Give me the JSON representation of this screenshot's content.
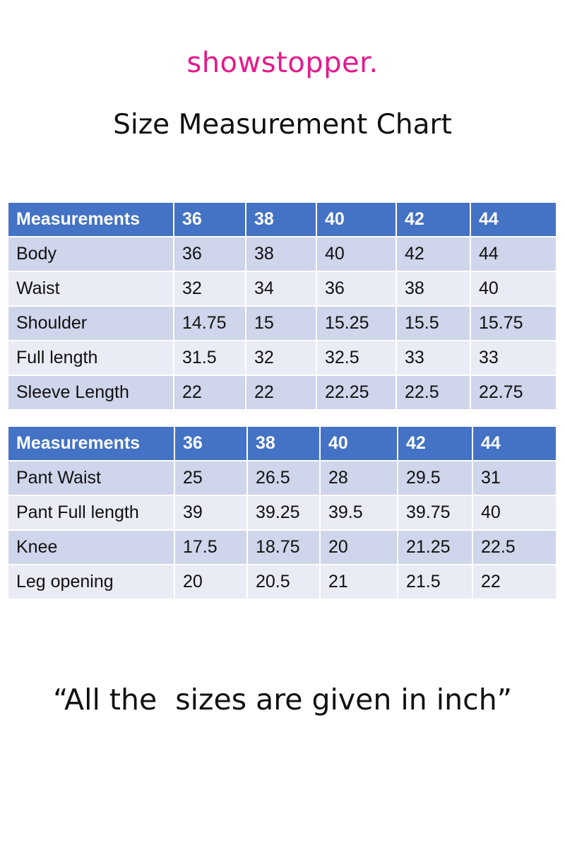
{
  "brand": "showstopper.",
  "title": "Size Measurement Chart",
  "tables": [
    {
      "header": [
        "Measurements",
        "36",
        "38",
        "40",
        "42",
        "44"
      ],
      "rows": [
        [
          "Body",
          "36",
          "38",
          "40",
          "42",
          "44"
        ],
        [
          "Waist",
          "32",
          "34",
          "36",
          "38",
          "40"
        ],
        [
          "Shoulder",
          "14.75",
          "15",
          "15.25",
          "15.5",
          "15.75"
        ],
        [
          "Full length",
          "31.5",
          "32",
          "32.5",
          "33",
          "33"
        ],
        [
          "Sleeve Length",
          "22",
          "22",
          "22.25",
          "22.5",
          "22.75"
        ]
      ]
    },
    {
      "header": [
        "Measurements",
        "36",
        "38",
        "40",
        "42",
        "44"
      ],
      "rows": [
        [
          "Pant Waist",
          "25",
          "26.5",
          "28",
          "29.5",
          "31"
        ],
        [
          "Pant Full length",
          "39",
          "39.25",
          "39.5",
          "39.75",
          "40"
        ],
        [
          "Knee",
          "17.5",
          "18.75",
          "20",
          "21.25",
          "22.5"
        ],
        [
          "Leg opening",
          "20",
          "20.5",
          "21",
          "21.5",
          "22"
        ]
      ]
    }
  ],
  "note": "“All the  sizes are given in inch”",
  "colors": {
    "brand": "#e6198c",
    "header": "#4472c4",
    "row_odd": "#cfd5ea",
    "row_even": "#e9ebf5"
  }
}
